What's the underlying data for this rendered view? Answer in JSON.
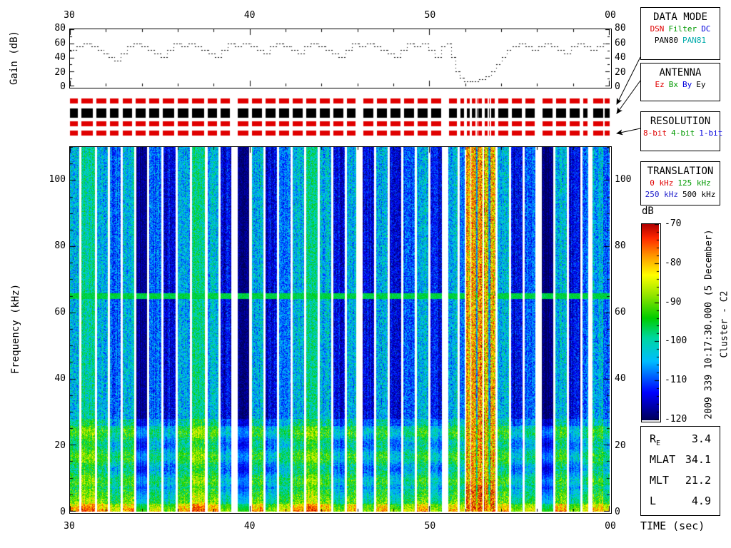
{
  "gain_panel": {
    "ylabel": "Gain (dB)"
  },
  "spectrogram": {
    "ylabel": "Frequency (kHz)"
  },
  "time_axis": {
    "label": "TIME (sec)",
    "ticks": [
      "30",
      "40",
      "50",
      "00"
    ],
    "tick_seconds": [
      30,
      40,
      50,
      60
    ],
    "span": [
      30,
      60
    ]
  },
  "colorbar": {
    "label": "dB",
    "ticks": [
      -70,
      -80,
      -90,
      -100,
      -110,
      -120
    ],
    "range": [
      -120,
      -70
    ]
  },
  "side_text": {
    "datetime": "2009 339 10:17:30.000 (5 December)",
    "spacecraft": "Cluster - C2"
  },
  "boxes": {
    "data_mode": {
      "title": "DATA MODE",
      "rows": [
        [
          {
            "t": "DSN",
            "c": "#e00000"
          },
          {
            "t": "Filter",
            "c": "#009900"
          },
          {
            "t": "DC",
            "c": "#0000dd"
          }
        ],
        [
          {
            "t": "PAN80",
            "c": "#000000"
          },
          {
            "t": "PAN81",
            "c": "#00aaaa"
          }
        ]
      ]
    },
    "antenna": {
      "title": "ANTENNA",
      "rows": [
        [
          {
            "t": "Ez",
            "c": "#e00000"
          },
          {
            "t": "Bx",
            "c": "#009900"
          },
          {
            "t": "By",
            "c": "#0000dd"
          },
          {
            "t": "Ey",
            "c": "#000000"
          }
        ]
      ]
    },
    "resolution": {
      "title": "RESOLUTION",
      "rows": [
        [
          {
            "t": "8-bit",
            "c": "#e00000"
          },
          {
            "t": "4-bit",
            "c": "#009900"
          },
          {
            "t": "1-bit",
            "c": "#0000dd"
          }
        ]
      ]
    },
    "translation": {
      "title": "TRANSLATION",
      "rows": [
        [
          {
            "t": "0 kHz",
            "c": "#e00000"
          },
          {
            "t": "125 kHz",
            "c": "#009900"
          }
        ],
        [
          {
            "t": "250 kHz",
            "c": "#2222cc"
          },
          {
            "t": "500 kHz",
            "c": "#000000"
          }
        ]
      ]
    }
  },
  "ephemeris": {
    "rows": [
      {
        "label": "R",
        "sub": "E",
        "value": "3.4"
      },
      {
        "label": "MLAT",
        "sub": "",
        "value": "34.1"
      },
      {
        "label": "MLT",
        "sub": "",
        "value": "21.2"
      },
      {
        "label": "L",
        "sub": "",
        "value": "4.9"
      }
    ]
  },
  "strip": {
    "bar_colors": [
      "#e00000",
      "#000000",
      "#e00000",
      "#e00000"
    ]
  },
  "chart_data": [
    {
      "type": "line",
      "title": "Receiver gain vs time",
      "ylabel": "Gain (dB)",
      "ylim": [
        0,
        80
      ],
      "yticks": [
        0,
        20,
        40,
        60,
        80
      ],
      "xticklabels": [
        "30",
        "40",
        "50",
        "00"
      ],
      "style": "dotted-step",
      "steps": [
        [
          0.0,
          50
        ],
        [
          0.012,
          55
        ],
        [
          0.025,
          60
        ],
        [
          0.04,
          55
        ],
        [
          0.052,
          50
        ],
        [
          0.062,
          45
        ],
        [
          0.072,
          40
        ],
        [
          0.082,
          35
        ],
        [
          0.094,
          45
        ],
        [
          0.106,
          55
        ],
        [
          0.118,
          60
        ],
        [
          0.132,
          55
        ],
        [
          0.144,
          50
        ],
        [
          0.156,
          45
        ],
        [
          0.168,
          40
        ],
        [
          0.18,
          50
        ],
        [
          0.192,
          60
        ],
        [
          0.206,
          55
        ],
        [
          0.22,
          60
        ],
        [
          0.232,
          55
        ],
        [
          0.244,
          50
        ],
        [
          0.256,
          45
        ],
        [
          0.268,
          40
        ],
        [
          0.28,
          50
        ],
        [
          0.292,
          60
        ],
        [
          0.306,
          55
        ],
        [
          0.32,
          60
        ],
        [
          0.334,
          55
        ],
        [
          0.346,
          50
        ],
        [
          0.358,
          45
        ],
        [
          0.37,
          55
        ],
        [
          0.382,
          60
        ],
        [
          0.396,
          55
        ],
        [
          0.41,
          50
        ],
        [
          0.422,
          45
        ],
        [
          0.434,
          55
        ],
        [
          0.446,
          60
        ],
        [
          0.46,
          55
        ],
        [
          0.474,
          50
        ],
        [
          0.486,
          45
        ],
        [
          0.498,
          40
        ],
        [
          0.51,
          50
        ],
        [
          0.522,
          60
        ],
        [
          0.536,
          55
        ],
        [
          0.55,
          60
        ],
        [
          0.564,
          55
        ],
        [
          0.576,
          50
        ],
        [
          0.588,
          45
        ],
        [
          0.6,
          40
        ],
        [
          0.612,
          50
        ],
        [
          0.624,
          60
        ],
        [
          0.638,
          55
        ],
        [
          0.652,
          60
        ],
        [
          0.664,
          50
        ],
        [
          0.676,
          40
        ],
        [
          0.688,
          55
        ],
        [
          0.698,
          60
        ],
        [
          0.706,
          40
        ],
        [
          0.714,
          20
        ],
        [
          0.722,
          10
        ],
        [
          0.73,
          5
        ],
        [
          0.745,
          5
        ],
        [
          0.758,
          8
        ],
        [
          0.77,
          12
        ],
        [
          0.78,
          20
        ],
        [
          0.79,
          30
        ],
        [
          0.8,
          40
        ],
        [
          0.81,
          50
        ],
        [
          0.82,
          55
        ],
        [
          0.832,
          60
        ],
        [
          0.844,
          55
        ],
        [
          0.856,
          50
        ],
        [
          0.868,
          55
        ],
        [
          0.88,
          60
        ],
        [
          0.892,
          55
        ],
        [
          0.904,
          50
        ],
        [
          0.916,
          45
        ],
        [
          0.928,
          55
        ],
        [
          0.94,
          60
        ],
        [
          0.952,
          55
        ],
        [
          0.964,
          50
        ],
        [
          0.976,
          55
        ],
        [
          0.988,
          60
        ],
        [
          1.0,
          60
        ]
      ]
    },
    {
      "type": "heatmap",
      "title": "Wideband spectrogram",
      "ylabel": "Frequency (kHz)",
      "ylim": [
        0,
        110
      ],
      "yticks": [
        0,
        20,
        40,
        60,
        80,
        100
      ],
      "xticklabels": [
        "30",
        "40",
        "50",
        "00"
      ],
      "value_range_db": [
        -120,
        -70
      ],
      "features": {
        "green_line_khz": 65,
        "low_freq_enhancement_below_khz": 26,
        "intense_band_t": [
          0.734,
          0.788
        ]
      },
      "band_levels": {
        "k": {
          "base": -118,
          "noise": 3
        },
        "q": {
          "base": -114,
          "noise": 5
        },
        "m": {
          "base": -109,
          "noise": 6
        },
        "a": {
          "base": -104,
          "noise": 7
        },
        "b": {
          "base": -99,
          "noise": 6
        },
        "r": {
          "base": -80,
          "noise": 9
        }
      },
      "colormap": [
        [
          0.0,
          [
            0,
            0,
            90
          ]
        ],
        [
          0.14,
          [
            0,
            0,
            255
          ]
        ],
        [
          0.3,
          [
            0,
            190,
            255
          ]
        ],
        [
          0.42,
          [
            0,
            215,
            160
          ]
        ],
        [
          0.52,
          [
            0,
            205,
            0
          ]
        ],
        [
          0.64,
          [
            150,
            230,
            0
          ]
        ],
        [
          0.74,
          [
            255,
            255,
            0
          ]
        ],
        [
          0.84,
          [
            255,
            150,
            0
          ]
        ],
        [
          0.93,
          [
            255,
            40,
            0
          ]
        ],
        [
          1.0,
          [
            175,
            0,
            0
          ]
        ]
      ],
      "bands": [
        [
          0.0,
          0.017,
          "a"
        ],
        [
          0.017,
          0.021,
          "g"
        ],
        [
          0.021,
          0.045,
          "b"
        ],
        [
          0.045,
          0.049,
          "g"
        ],
        [
          0.049,
          0.07,
          "a"
        ],
        [
          0.07,
          0.074,
          "g"
        ],
        [
          0.074,
          0.093,
          "m"
        ],
        [
          0.093,
          0.097,
          "g"
        ],
        [
          0.097,
          0.118,
          "a"
        ],
        [
          0.118,
          0.122,
          "g"
        ],
        [
          0.122,
          0.142,
          "k"
        ],
        [
          0.142,
          0.146,
          "g"
        ],
        [
          0.146,
          0.168,
          "m"
        ],
        [
          0.168,
          0.172,
          "g"
        ],
        [
          0.172,
          0.195,
          "q"
        ],
        [
          0.195,
          0.199,
          "g"
        ],
        [
          0.199,
          0.222,
          "a"
        ],
        [
          0.222,
          0.226,
          "g"
        ],
        [
          0.226,
          0.25,
          "b"
        ],
        [
          0.25,
          0.254,
          "g"
        ],
        [
          0.254,
          0.275,
          "a"
        ],
        [
          0.275,
          0.279,
          "g"
        ],
        [
          0.279,
          0.298,
          "q"
        ],
        [
          0.298,
          0.31,
          "g"
        ],
        [
          0.31,
          0.332,
          "k"
        ],
        [
          0.332,
          0.336,
          "g"
        ],
        [
          0.336,
          0.358,
          "a"
        ],
        [
          0.358,
          0.362,
          "g"
        ],
        [
          0.362,
          0.383,
          "q"
        ],
        [
          0.383,
          0.387,
          "g"
        ],
        [
          0.387,
          0.408,
          "m"
        ],
        [
          0.408,
          0.412,
          "g"
        ],
        [
          0.412,
          0.433,
          "a"
        ],
        [
          0.433,
          0.437,
          "g"
        ],
        [
          0.437,
          0.458,
          "b"
        ],
        [
          0.458,
          0.462,
          "g"
        ],
        [
          0.462,
          0.483,
          "a"
        ],
        [
          0.483,
          0.487,
          "g"
        ],
        [
          0.487,
          0.508,
          "q"
        ],
        [
          0.508,
          0.512,
          "g"
        ],
        [
          0.512,
          0.53,
          "a"
        ],
        [
          0.53,
          0.542,
          "g"
        ],
        [
          0.542,
          0.563,
          "q"
        ],
        [
          0.563,
          0.567,
          "g"
        ],
        [
          0.567,
          0.588,
          "a"
        ],
        [
          0.588,
          0.592,
          "g"
        ],
        [
          0.592,
          0.613,
          "q"
        ],
        [
          0.613,
          0.617,
          "g"
        ],
        [
          0.617,
          0.638,
          "m"
        ],
        [
          0.638,
          0.642,
          "g"
        ],
        [
          0.642,
          0.663,
          "a"
        ],
        [
          0.663,
          0.667,
          "g"
        ],
        [
          0.667,
          0.688,
          "q"
        ],
        [
          0.688,
          0.7,
          "g"
        ],
        [
          0.7,
          0.718,
          "a"
        ],
        [
          0.718,
          0.722,
          "g"
        ],
        [
          0.722,
          0.731,
          "m"
        ],
        [
          0.731,
          0.734,
          "g"
        ],
        [
          0.734,
          0.741,
          "r"
        ],
        [
          0.741,
          0.743,
          "g"
        ],
        [
          0.743,
          0.752,
          "r"
        ],
        [
          0.752,
          0.755,
          "a"
        ],
        [
          0.755,
          0.764,
          "r"
        ],
        [
          0.764,
          0.766,
          "g"
        ],
        [
          0.766,
          0.775,
          "r"
        ],
        [
          0.775,
          0.778,
          "a"
        ],
        [
          0.778,
          0.788,
          "r"
        ],
        [
          0.788,
          0.792,
          "g"
        ],
        [
          0.792,
          0.813,
          "a"
        ],
        [
          0.813,
          0.817,
          "g"
        ],
        [
          0.817,
          0.838,
          "q"
        ],
        [
          0.838,
          0.842,
          "g"
        ],
        [
          0.842,
          0.862,
          "m"
        ],
        [
          0.862,
          0.874,
          "g"
        ],
        [
          0.874,
          0.895,
          "k"
        ],
        [
          0.895,
          0.899,
          "g"
        ],
        [
          0.899,
          0.92,
          "a"
        ],
        [
          0.92,
          0.924,
          "g"
        ],
        [
          0.924,
          0.945,
          "q"
        ],
        [
          0.945,
          0.949,
          "g"
        ],
        [
          0.949,
          0.959,
          "m"
        ],
        [
          0.959,
          0.967,
          "g"
        ],
        [
          0.967,
          0.988,
          "a"
        ],
        [
          0.988,
          1.0,
          "m"
        ]
      ]
    }
  ]
}
